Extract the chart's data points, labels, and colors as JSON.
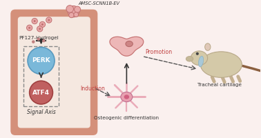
{
  "bg_color": "#faf0ee",
  "cell_wall_color": "#d4907a",
  "cell_interior_color": "#f5e8e0",
  "perk_circle_color": "#7ab8d9",
  "perk_circle_edge": "#5a9abf",
  "atf4_circle_color": "#c06060",
  "atf4_circle_edge": "#a04040",
  "box_dash_color": "#888888",
  "arrow_color": "#333333",
  "red_arrow_color": "#c04040",
  "dashed_arrow_color": "#555555",
  "dark_text_color": "#333333",
  "title": "AMSC-SCNN1B-EV",
  "pf127_label": "PF127-Hydrogel",
  "perk_label": "PERK",
  "atf4_label": "ATF4",
  "signal_label": "Signal Axis",
  "induction_label": "Induction",
  "osteo_label": "Osteogenic differentiation",
  "promotion_label": "Promotion",
  "tracheal_label": "Tracheal cartilage"
}
